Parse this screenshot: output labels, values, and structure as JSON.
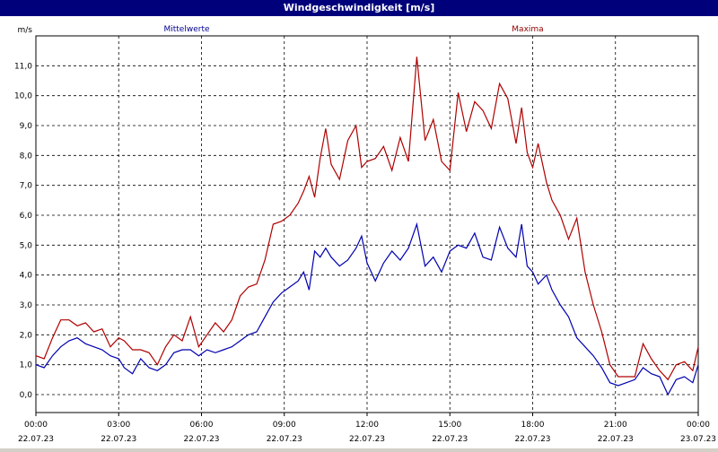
{
  "window": {
    "title": "Windgeschwindigkeit [m/s]"
  },
  "chart_data": {
    "type": "line",
    "title": "Windgeschwindigkeit [m/s]",
    "ylabel": "m/s",
    "ylim": [
      -0.6,
      12.0
    ],
    "yticks": [
      "0,0",
      "1,0",
      "2,0",
      "3,0",
      "4,0",
      "5,0",
      "6,0",
      "7,0",
      "8,0",
      "9,0",
      "10,0",
      "11,0"
    ],
    "xlim": [
      0,
      24
    ],
    "xticks": [
      {
        "time": "00:00",
        "date": "22.07.23"
      },
      {
        "time": "03:00",
        "date": "22.07.23"
      },
      {
        "time": "06:00",
        "date": "22.07.23"
      },
      {
        "time": "09:00",
        "date": "22.07.23"
      },
      {
        "time": "12:00",
        "date": "22.07.23"
      },
      {
        "time": "15:00",
        "date": "22.07.23"
      },
      {
        "time": "18:00",
        "date": "22.07.23"
      },
      {
        "time": "21:00",
        "date": "22.07.23"
      },
      {
        "time": "00:00",
        "date": "23.07.23"
      }
    ],
    "grid": true,
    "legend_placement": "top",
    "series": [
      {
        "name": "Mittelwerte",
        "color": "#0000b0",
        "values": [
          [
            0.0,
            1.0
          ],
          [
            0.3,
            0.9
          ],
          [
            0.6,
            1.3
          ],
          [
            0.9,
            1.6
          ],
          [
            1.2,
            1.8
          ],
          [
            1.5,
            1.9
          ],
          [
            1.8,
            1.7
          ],
          [
            2.1,
            1.6
          ],
          [
            2.4,
            1.5
          ],
          [
            2.7,
            1.3
          ],
          [
            3.0,
            1.2
          ],
          [
            3.2,
            0.9
          ],
          [
            3.5,
            0.7
          ],
          [
            3.8,
            1.2
          ],
          [
            4.1,
            0.9
          ],
          [
            4.4,
            0.8
          ],
          [
            4.7,
            1.0
          ],
          [
            5.0,
            1.4
          ],
          [
            5.3,
            1.5
          ],
          [
            5.6,
            1.5
          ],
          [
            5.9,
            1.3
          ],
          [
            6.2,
            1.5
          ],
          [
            6.5,
            1.4
          ],
          [
            6.8,
            1.5
          ],
          [
            7.1,
            1.6
          ],
          [
            7.4,
            1.8
          ],
          [
            7.7,
            2.0
          ],
          [
            8.0,
            2.1
          ],
          [
            8.3,
            2.6
          ],
          [
            8.6,
            3.1
          ],
          [
            8.9,
            3.4
          ],
          [
            9.2,
            3.6
          ],
          [
            9.5,
            3.8
          ],
          [
            9.7,
            4.1
          ],
          [
            9.9,
            3.5
          ],
          [
            10.1,
            4.8
          ],
          [
            10.3,
            4.6
          ],
          [
            10.5,
            4.9
          ],
          [
            10.7,
            4.6
          ],
          [
            11.0,
            4.3
          ],
          [
            11.3,
            4.5
          ],
          [
            11.6,
            4.9
          ],
          [
            11.8,
            5.3
          ],
          [
            12.0,
            4.4
          ],
          [
            12.3,
            3.8
          ],
          [
            12.6,
            4.4
          ],
          [
            12.9,
            4.8
          ],
          [
            13.2,
            4.5
          ],
          [
            13.5,
            4.9
          ],
          [
            13.8,
            5.7
          ],
          [
            14.1,
            4.3
          ],
          [
            14.4,
            4.6
          ],
          [
            14.7,
            4.1
          ],
          [
            15.0,
            4.8
          ],
          [
            15.3,
            5.0
          ],
          [
            15.6,
            4.9
          ],
          [
            15.9,
            5.4
          ],
          [
            16.2,
            4.6
          ],
          [
            16.5,
            4.5
          ],
          [
            16.8,
            5.6
          ],
          [
            17.1,
            4.9
          ],
          [
            17.4,
            4.6
          ],
          [
            17.6,
            5.7
          ],
          [
            17.8,
            4.3
          ],
          [
            18.0,
            4.1
          ],
          [
            18.2,
            3.7
          ],
          [
            18.5,
            4.0
          ],
          [
            18.7,
            3.5
          ],
          [
            19.0,
            3.0
          ],
          [
            19.3,
            2.6
          ],
          [
            19.6,
            1.9
          ],
          [
            19.9,
            1.6
          ],
          [
            20.2,
            1.3
          ],
          [
            20.5,
            0.9
          ],
          [
            20.8,
            0.4
          ],
          [
            21.1,
            0.3
          ],
          [
            21.4,
            0.4
          ],
          [
            21.7,
            0.5
          ],
          [
            22.0,
            0.9
          ],
          [
            22.3,
            0.7
          ],
          [
            22.6,
            0.6
          ],
          [
            22.9,
            0.0
          ],
          [
            23.2,
            0.5
          ],
          [
            23.5,
            0.6
          ],
          [
            23.8,
            0.4
          ],
          [
            24.0,
            1.0
          ]
        ]
      },
      {
        "name": "Maxima",
        "color": "#b00000",
        "values": [
          [
            0.0,
            1.3
          ],
          [
            0.3,
            1.2
          ],
          [
            0.6,
            1.9
          ],
          [
            0.9,
            2.5
          ],
          [
            1.2,
            2.5
          ],
          [
            1.5,
            2.3
          ],
          [
            1.8,
            2.4
          ],
          [
            2.1,
            2.1
          ],
          [
            2.4,
            2.2
          ],
          [
            2.7,
            1.6
          ],
          [
            3.0,
            1.9
          ],
          [
            3.2,
            1.8
          ],
          [
            3.5,
            1.5
          ],
          [
            3.8,
            1.5
          ],
          [
            4.1,
            1.4
          ],
          [
            4.4,
            1.0
          ],
          [
            4.7,
            1.6
          ],
          [
            5.0,
            2.0
          ],
          [
            5.3,
            1.8
          ],
          [
            5.6,
            2.6
          ],
          [
            5.9,
            1.6
          ],
          [
            6.2,
            2.0
          ],
          [
            6.5,
            2.4
          ],
          [
            6.8,
            2.1
          ],
          [
            7.1,
            2.5
          ],
          [
            7.4,
            3.3
          ],
          [
            7.7,
            3.6
          ],
          [
            8.0,
            3.7
          ],
          [
            8.3,
            4.5
          ],
          [
            8.6,
            5.7
          ],
          [
            8.9,
            5.8
          ],
          [
            9.2,
            6.0
          ],
          [
            9.5,
            6.4
          ],
          [
            9.7,
            6.8
          ],
          [
            9.9,
            7.3
          ],
          [
            10.1,
            6.6
          ],
          [
            10.3,
            7.9
          ],
          [
            10.5,
            8.9
          ],
          [
            10.7,
            7.7
          ],
          [
            11.0,
            7.2
          ],
          [
            11.3,
            8.5
          ],
          [
            11.6,
            9.0
          ],
          [
            11.8,
            7.6
          ],
          [
            12.0,
            7.8
          ],
          [
            12.3,
            7.9
          ],
          [
            12.6,
            8.3
          ],
          [
            12.9,
            7.5
          ],
          [
            13.2,
            8.6
          ],
          [
            13.5,
            7.8
          ],
          [
            13.8,
            11.3
          ],
          [
            14.1,
            8.5
          ],
          [
            14.4,
            9.2
          ],
          [
            14.7,
            7.8
          ],
          [
            15.0,
            7.5
          ],
          [
            15.3,
            10.1
          ],
          [
            15.6,
            8.8
          ],
          [
            15.9,
            9.8
          ],
          [
            16.2,
            9.5
          ],
          [
            16.5,
            8.9
          ],
          [
            16.8,
            10.4
          ],
          [
            17.1,
            9.9
          ],
          [
            17.4,
            8.4
          ],
          [
            17.6,
            9.6
          ],
          [
            17.8,
            8.1
          ],
          [
            18.0,
            7.6
          ],
          [
            18.2,
            8.4
          ],
          [
            18.5,
            7.1
          ],
          [
            18.7,
            6.5
          ],
          [
            19.0,
            6.0
          ],
          [
            19.3,
            5.2
          ],
          [
            19.6,
            5.9
          ],
          [
            19.9,
            4.1
          ],
          [
            20.2,
            3.0
          ],
          [
            20.5,
            2.1
          ],
          [
            20.8,
            1.0
          ],
          [
            21.1,
            0.6
          ],
          [
            21.4,
            0.6
          ],
          [
            21.7,
            0.6
          ],
          [
            22.0,
            1.7
          ],
          [
            22.3,
            1.2
          ],
          [
            22.6,
            0.8
          ],
          [
            22.9,
            0.5
          ],
          [
            23.2,
            1.0
          ],
          [
            23.5,
            1.1
          ],
          [
            23.8,
            0.8
          ],
          [
            24.0,
            1.6
          ]
        ]
      }
    ]
  }
}
